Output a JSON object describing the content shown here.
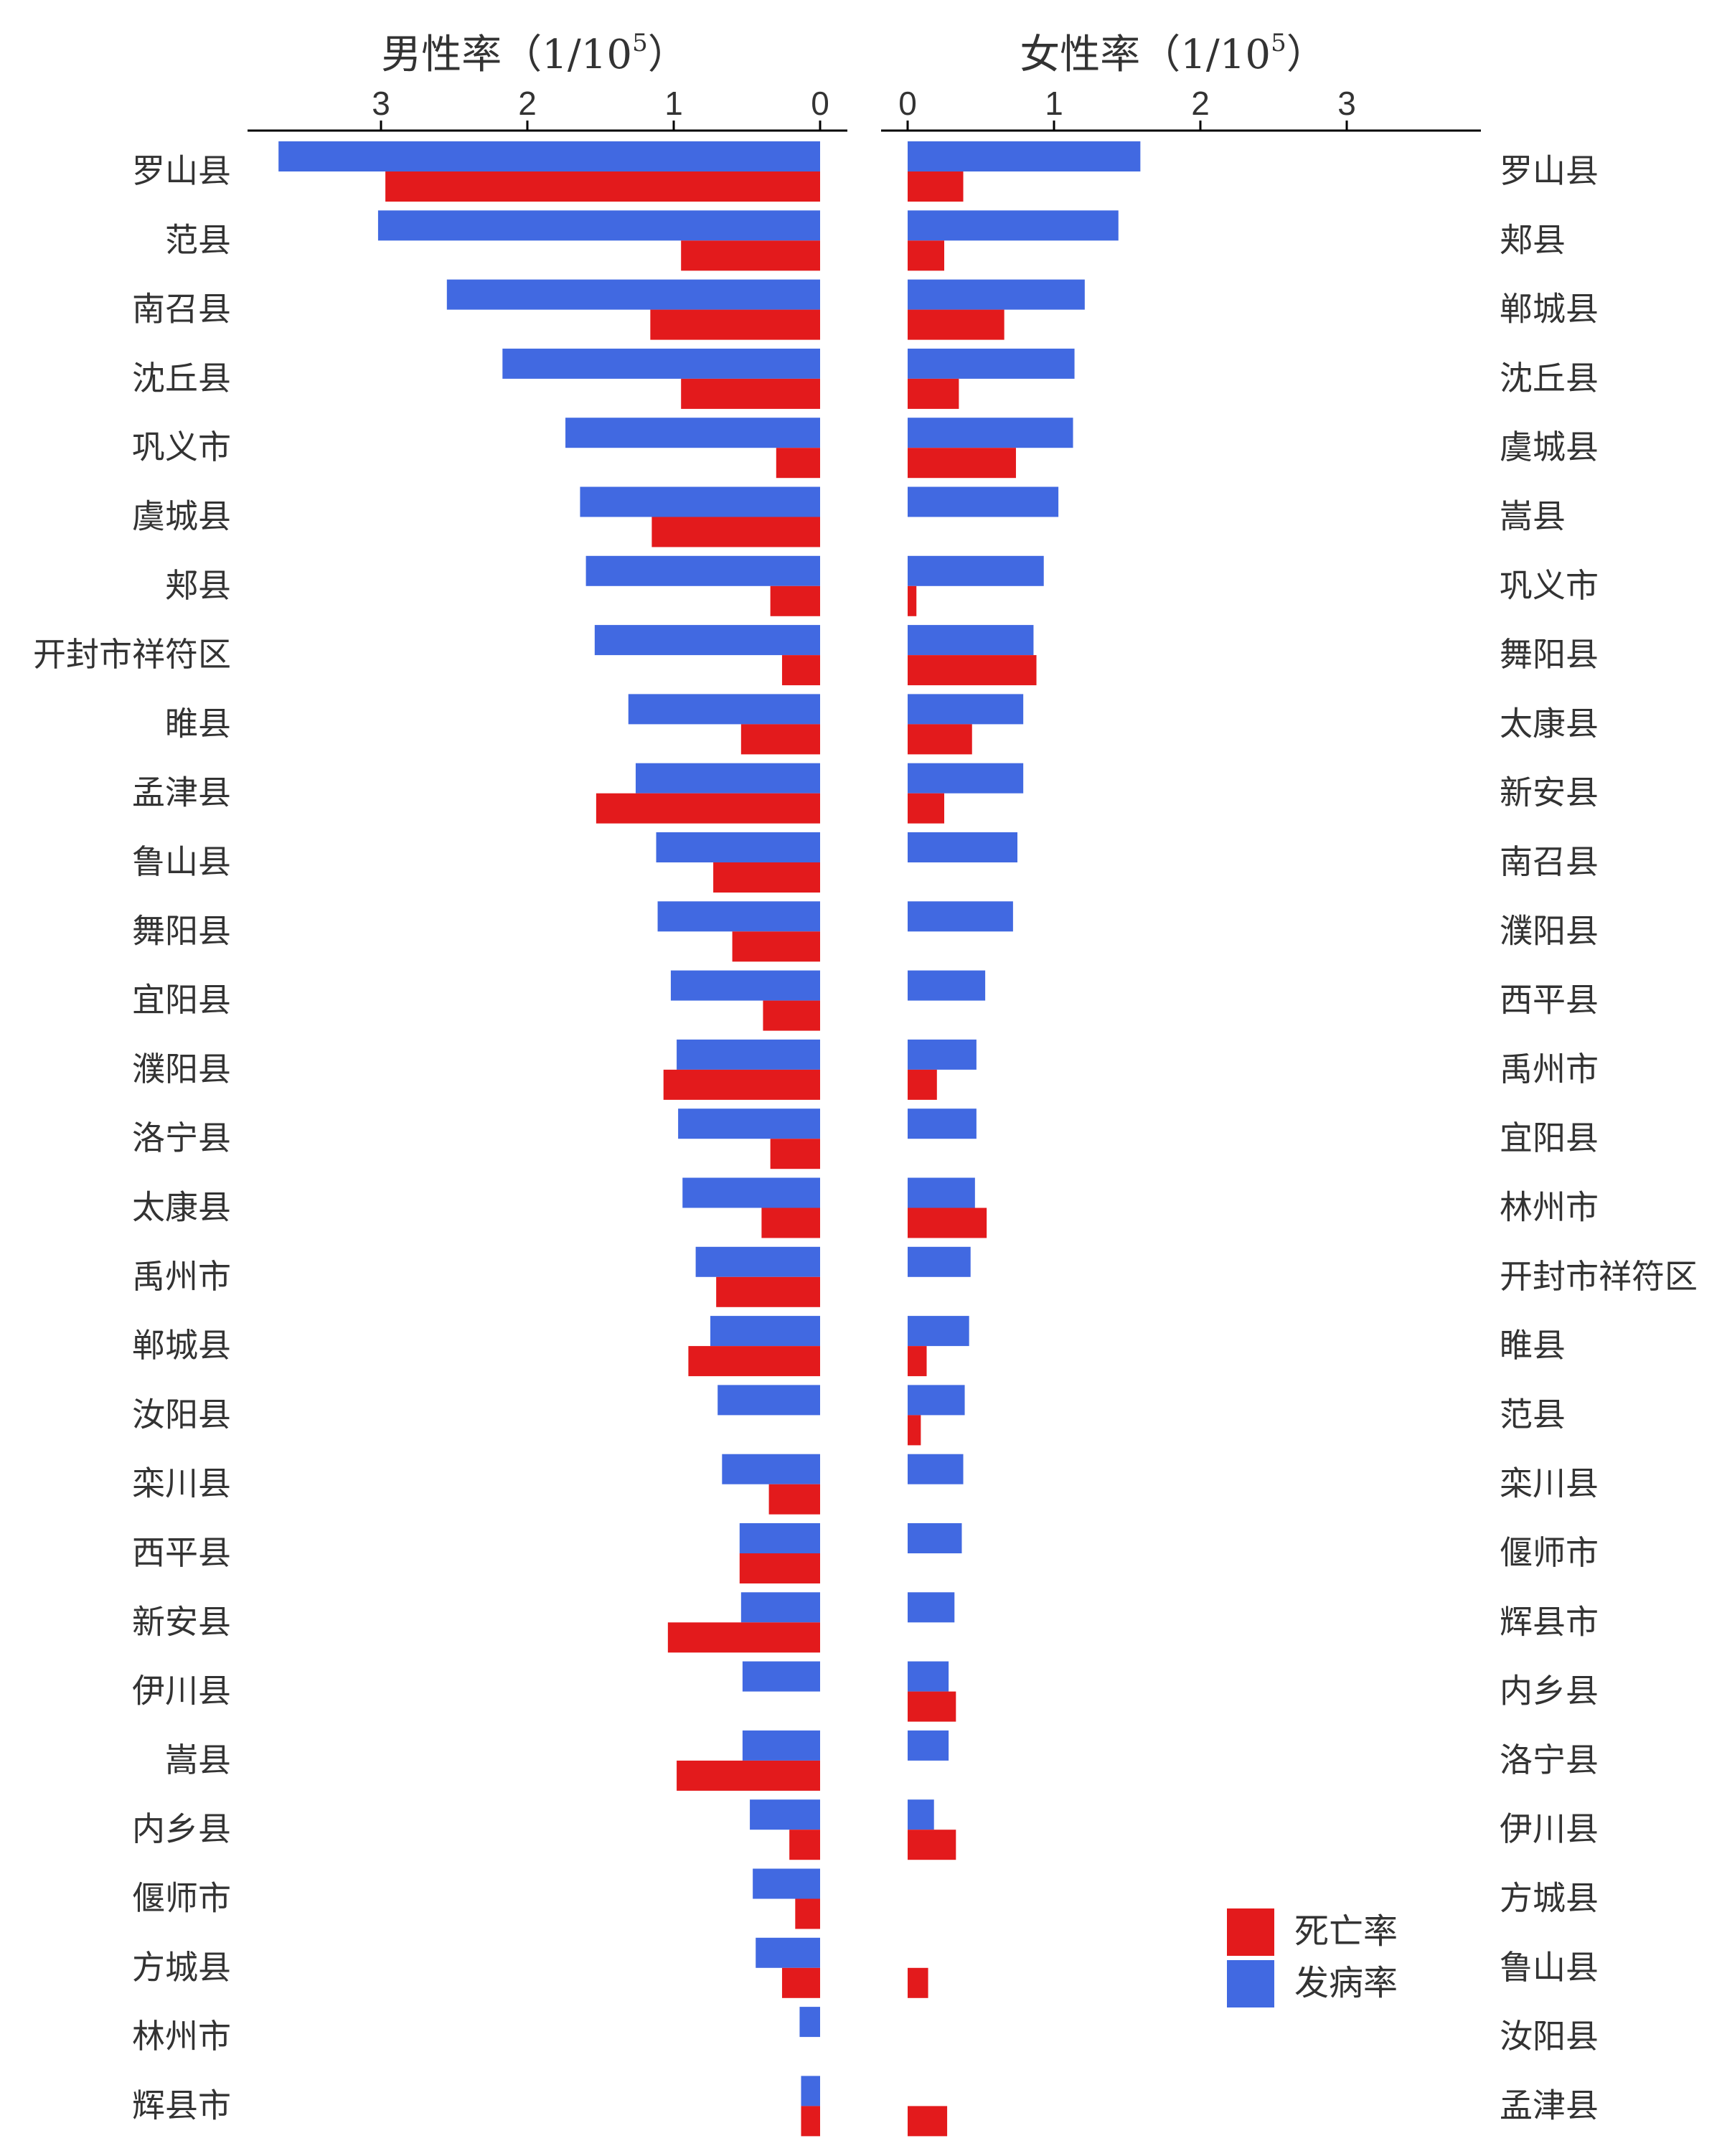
{
  "colors": {
    "death": "#e31a1c",
    "incidence": "#4169e1",
    "axis": "#000000",
    "text": "#333333"
  },
  "legend": {
    "items": [
      {
        "key": "death",
        "label": "死亡率"
      },
      {
        "key": "incidence",
        "label": "发病率"
      }
    ],
    "position": "bottom-right"
  },
  "chart_data": [
    {
      "type": "bar",
      "orientation": "horizontal",
      "direction": "leftward",
      "title": "男性率（1/10",
      "title_sup": "5",
      "title_close": "）",
      "xlim": [
        0,
        3.7
      ],
      "ticks": [
        0,
        1,
        2,
        3
      ],
      "categories": [
        "罗山县",
        "范县",
        "南召县",
        "沈丘县",
        "巩义市",
        "虞城县",
        "郏县",
        "开封市祥符区",
        "睢县",
        "孟津县",
        "鲁山县",
        "舞阳县",
        "宜阳县",
        "濮阳县",
        "洛宁县",
        "太康县",
        "禹州市",
        "郸城县",
        "汝阳县",
        "栾川县",
        "西平县",
        "新安县",
        "伊川县",
        "嵩县",
        "内乡县",
        "偃师市",
        "方城县",
        "林州市",
        "辉县市"
      ],
      "series": [
        {
          "name": "发病率",
          "key": "incidence",
          "values": [
            3.7,
            3.02,
            2.55,
            2.17,
            1.74,
            1.64,
            1.6,
            1.54,
            1.31,
            1.26,
            1.12,
            1.11,
            1.02,
            0.98,
            0.97,
            0.94,
            0.85,
            0.75,
            0.7,
            0.67,
            0.55,
            0.54,
            0.53,
            0.53,
            0.48,
            0.46,
            0.44,
            0.14,
            0.13
          ]
        },
        {
          "name": "死亡率",
          "key": "death",
          "values": [
            2.97,
            0.95,
            1.16,
            0.95,
            0.3,
            1.15,
            0.34,
            0.26,
            0.54,
            1.53,
            0.73,
            0.6,
            0.39,
            1.07,
            0.34,
            0.4,
            0.71,
            0.9,
            0,
            0.35,
            0.55,
            1.04,
            0,
            0.98,
            0.21,
            0.17,
            0.26,
            0,
            0.13
          ]
        }
      ]
    },
    {
      "type": "bar",
      "orientation": "horizontal",
      "direction": "rightward",
      "title": "女性率（1/10",
      "title_sup": "5",
      "title_close": "）",
      "xlim": [
        0,
        3.7
      ],
      "ticks": [
        0,
        1,
        2,
        3
      ],
      "categories": [
        "罗山县",
        "郏县",
        "郸城县",
        "沈丘县",
        "虞城县",
        "嵩县",
        "巩义市",
        "舞阳县",
        "太康县",
        "新安县",
        "南召县",
        "濮阳县",
        "西平县",
        "禹州市",
        "宜阳县",
        "林州市",
        "开封市祥符区",
        "睢县",
        "范县",
        "栾川县",
        "偃师市",
        "辉县市",
        "内乡县",
        "洛宁县",
        "伊川县",
        "方城县",
        "鲁山县",
        "汝阳县",
        "孟津县"
      ],
      "series": [
        {
          "name": "发病率",
          "key": "incidence",
          "values": [
            1.59,
            1.44,
            1.21,
            1.14,
            1.13,
            1.03,
            0.93,
            0.86,
            0.79,
            0.79,
            0.75,
            0.72,
            0.53,
            0.47,
            0.47,
            0.46,
            0.43,
            0.42,
            0.39,
            0.38,
            0.37,
            0.32,
            0.28,
            0.28,
            0.18,
            0,
            0,
            0,
            0
          ]
        },
        {
          "name": "死亡率",
          "key": "death",
          "values": [
            0.38,
            0.25,
            0.66,
            0.35,
            0.74,
            0,
            0.06,
            0.88,
            0.44,
            0.25,
            0,
            0,
            0,
            0.2,
            0,
            0.54,
            0,
            0.13,
            0.09,
            0,
            0,
            0,
            0.33,
            0,
            0.33,
            0,
            0.14,
            0,
            0.27
          ]
        }
      ]
    }
  ]
}
